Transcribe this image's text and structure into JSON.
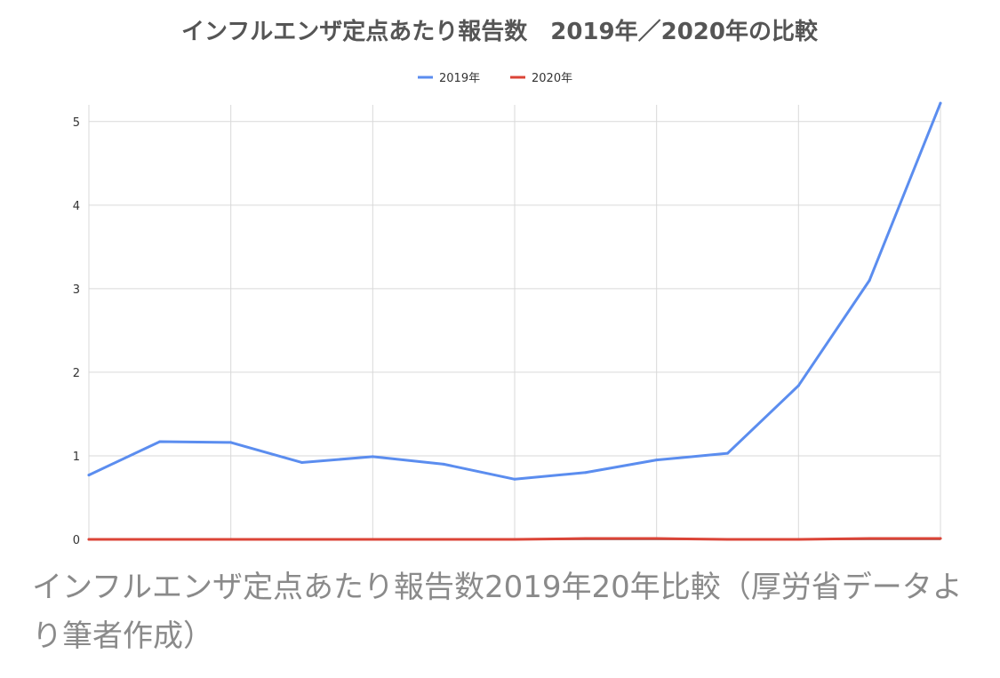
{
  "chart_data": {
    "type": "line",
    "title": "インフルエンザ定点あたり報告数　2019年／2020年の比較",
    "xlabel": "",
    "ylabel": "",
    "ylim": [
      0,
      5.2
    ],
    "yticks": [
      0,
      1,
      2,
      3,
      4,
      5
    ],
    "grid": true,
    "legend_position": "top",
    "x": [
      1,
      2,
      3,
      4,
      5,
      6,
      7,
      8,
      9,
      10,
      11,
      12,
      13
    ],
    "series": [
      {
        "name": "2019年",
        "color": "#5b8def",
        "values": [
          0.77,
          1.17,
          1.16,
          0.92,
          0.99,
          0.9,
          0.72,
          0.8,
          0.95,
          1.03,
          1.84,
          3.1,
          5.22
        ]
      },
      {
        "name": "2020年",
        "color": "#db4437",
        "values": [
          0.0,
          0.0,
          0.0,
          0.0,
          0.0,
          0.0,
          0.0,
          0.01,
          0.01,
          0.0,
          0.0,
          0.01,
          0.01
        ]
      }
    ]
  },
  "caption": "インフルエンザ定点あたり報告数2019年20年比較（厚労省データより筆者作成）"
}
